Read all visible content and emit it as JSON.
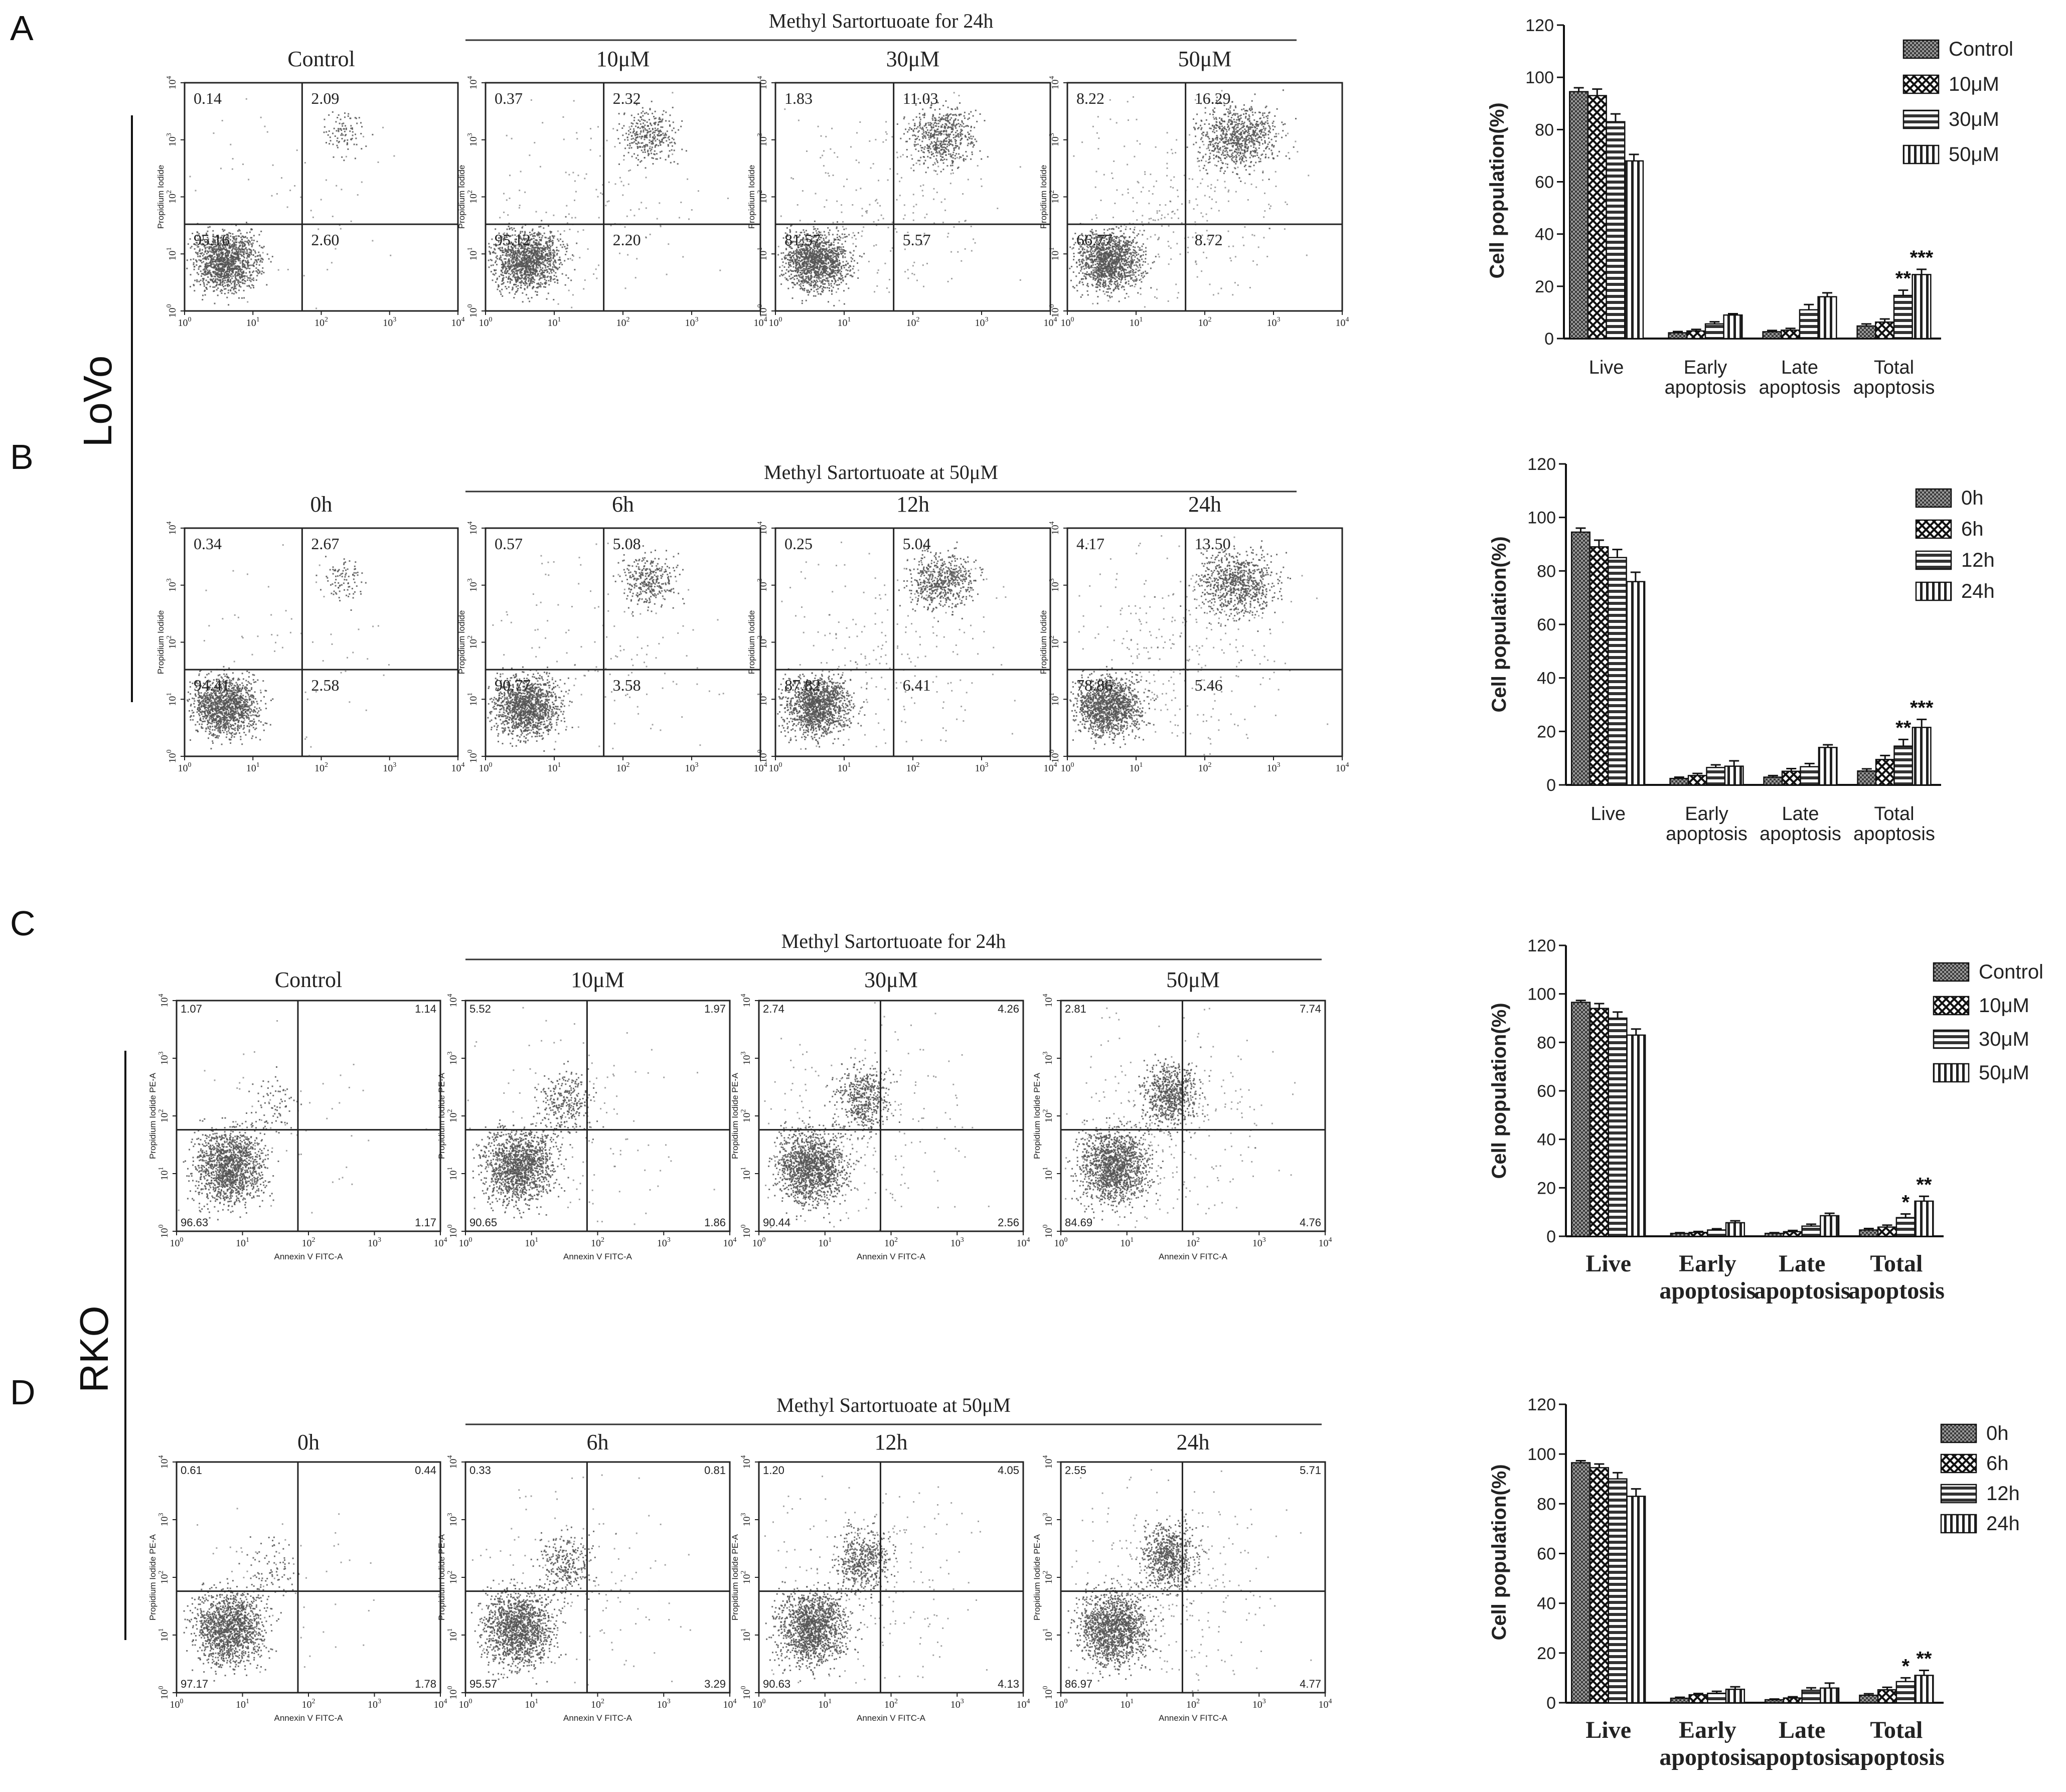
{
  "figure": {
    "panels": [
      "A",
      "B",
      "C",
      "D"
    ],
    "lines": {
      "lovo": "LoVo",
      "rko": "RKO"
    },
    "rows": [
      {
        "panel": "A",
        "style": "lovo",
        "group_title": "Methyl Sartortuoate for 24h",
        "y_axis_label": "Propidium Iodide",
        "x_axis_label": "",
        "plots": [
          {
            "title": "Control",
            "ul": "0.14",
            "ur": "2.09",
            "ll": "95.16",
            "lr": "2.60"
          },
          {
            "title": "10μM",
            "ul": "0.37",
            "ur": "2.32",
            "ll": "95.12",
            "lr": "2.20"
          },
          {
            "title": "30μM",
            "ul": "1.83",
            "ur": "11.03",
            "ll": "81.57",
            "lr": "5.57"
          },
          {
            "title": "50μM",
            "ul": "8.22",
            "ur": "16.29",
            "ll": "66.77",
            "lr": "8.72"
          }
        ]
      },
      {
        "panel": "B",
        "style": "lovo",
        "group_title": "Methyl Sartortuoate at 50μM",
        "y_axis_label": "Propidium Iodide",
        "x_axis_label": "",
        "plots": [
          {
            "title": "0h",
            "ul": "0.34",
            "ur": "2.67",
            "ll": "94.41",
            "lr": "2.58"
          },
          {
            "title": "6h",
            "ul": "0.57",
            "ur": "5.08",
            "ll": "90.77",
            "lr": "3.58"
          },
          {
            "title": "12h",
            "ul": "0.25",
            "ur": "5.04",
            "ll": "87.82",
            "lr": "6.41"
          },
          {
            "title": "24h",
            "ul": "4.17",
            "ur": "13.50",
            "ll": "78.86",
            "lr": "5.46"
          }
        ]
      },
      {
        "panel": "C",
        "style": "rko",
        "group_title": "Methyl Sartortuoate for 24h",
        "y_axis_label": "Propidium Iodide PE-A",
        "x_axis_label": "Annexin V FITC-A",
        "plots": [
          {
            "title": "Control",
            "ul": "1.07",
            "ur": "1.14",
            "ll": "96.63",
            "lr": "1.17"
          },
          {
            "title": "10μM",
            "ul": "5.52",
            "ur": "1.97",
            "ll": "90.65",
            "lr": "1.86"
          },
          {
            "title": "30μM",
            "ul": "2.74",
            "ur": "4.26",
            "ll": "90.44",
            "lr": "2.56"
          },
          {
            "title": "50μM",
            "ul": "2.81",
            "ur": "7.74",
            "ll": "84.69",
            "lr": "4.76"
          }
        ]
      },
      {
        "panel": "D",
        "style": "rko",
        "group_title": "Methyl Sartortuoate at 50μM",
        "y_axis_label": "Propidium Iodide PE-A",
        "x_axis_label": "Annexin V FITC-A",
        "plots": [
          {
            "title": "0h",
            "ul": "0.61",
            "ur": "0.44",
            "ll": "97.17",
            "lr": "1.78"
          },
          {
            "title": "6h",
            "ul": "0.33",
            "ur": "0.81",
            "ll": "95.57",
            "lr": "3.29"
          },
          {
            "title": "12h",
            "ul": "1.20",
            "ur": "4.05",
            "ll": "90.63",
            "lr": "4.13"
          },
          {
            "title": "24h",
            "ul": "2.55",
            "ur": "5.71",
            "ll": "86.97",
            "lr": "4.77"
          }
        ]
      }
    ]
  },
  "chart_data": [
    {
      "type": "bar",
      "panel": "A",
      "ylabel": "Cell population(%)",
      "ylim": [
        0,
        120
      ],
      "yticks": [
        0,
        20,
        40,
        60,
        80,
        100,
        120
      ],
      "categories": [
        "Live",
        "Early apoptosis",
        "Late apoptosis",
        "Total apoptosis"
      ],
      "series": [
        {
          "name": "Control",
          "values": [
            94.5,
            2.2,
            2.6,
            4.8
          ],
          "errors": [
            1.5,
            0.5,
            0.5,
            0.8
          ]
        },
        {
          "name": "10μM",
          "values": [
            93,
            2.9,
            3.2,
            6.3
          ],
          "errors": [
            2.5,
            0.6,
            0.7,
            1.2
          ]
        },
        {
          "name": "30μM",
          "values": [
            83,
            5.6,
            11,
            16.5
          ],
          "errors": [
            3,
            0.8,
            2,
            2
          ]
        },
        {
          "name": "50μM",
          "values": [
            68,
            9,
            16,
            24.5
          ],
          "errors": [
            2.5,
            0.5,
            1.5,
            2
          ]
        }
      ],
      "annotations": [
        {
          "category": "Total apoptosis",
          "series": "30μM",
          "text": "**"
        },
        {
          "category": "Total apoptosis",
          "series": "50μM",
          "text": "***"
        }
      ]
    },
    {
      "type": "bar",
      "panel": "B",
      "ylabel": "Cell population(%)",
      "ylim": [
        0,
        120
      ],
      "yticks": [
        0,
        20,
        40,
        60,
        80,
        100,
        120
      ],
      "categories": [
        "Live",
        "Early apoptosis",
        "Late apoptosis",
        "Total apoptosis"
      ],
      "series": [
        {
          "name": "0h",
          "values": [
            94.5,
            2.4,
            2.9,
            5.2
          ],
          "errors": [
            1.5,
            0.5,
            0.6,
            0.8
          ]
        },
        {
          "name": "6h",
          "values": [
            89,
            3.5,
            5.1,
            9.5
          ],
          "errors": [
            2.5,
            0.8,
            1,
            1.5
          ]
        },
        {
          "name": "12h",
          "values": [
            85,
            6.5,
            6.8,
            14.5
          ],
          "errors": [
            3,
            1,
            1.2,
            2.5
          ]
        },
        {
          "name": "24h",
          "values": [
            76,
            7,
            14,
            21.5
          ],
          "errors": [
            3.5,
            2,
            1,
            3
          ]
        }
      ],
      "annotations": [
        {
          "category": "Total apoptosis",
          "series": "12h",
          "text": "**"
        },
        {
          "category": "Total apoptosis",
          "series": "24h",
          "text": "***"
        }
      ]
    },
    {
      "type": "bar",
      "panel": "C",
      "ylabel": "Cell population(%)",
      "ylim": [
        0,
        120
      ],
      "yticks": [
        0,
        20,
        40,
        60,
        80,
        100,
        120
      ],
      "categories": [
        "Live",
        "Early apoptosis",
        "Late apoptosis",
        "Total apoptosis"
      ],
      "series": [
        {
          "name": "Control",
          "values": [
            96.5,
            1.2,
            1.2,
            2.6
          ],
          "errors": [
            0.8,
            0.3,
            0.3,
            0.6
          ]
        },
        {
          "name": "10μM",
          "values": [
            94,
            1.6,
            1.9,
            3.8
          ],
          "errors": [
            2,
            0.4,
            0.5,
            0.8
          ]
        },
        {
          "name": "30μM",
          "values": [
            90,
            2.6,
            4.2,
            7.7
          ],
          "errors": [
            2.5,
            0.5,
            0.8,
            1.5
          ]
        },
        {
          "name": "50μM",
          "values": [
            83,
            5.6,
            8.5,
            14.5
          ],
          "errors": [
            2.5,
            0.8,
            1,
            2
          ]
        }
      ],
      "annotations": [
        {
          "category": "Total apoptosis",
          "series": "30μM",
          "text": "*"
        },
        {
          "category": "Total apoptosis",
          "series": "50μM",
          "text": "**"
        }
      ]
    },
    {
      "type": "bar",
      "panel": "D",
      "ylabel": "Cell population(%)",
      "ylim": [
        0,
        120
      ],
      "yticks": [
        0,
        20,
        40,
        60,
        80,
        100,
        120
      ],
      "categories": [
        "Live",
        "Early apoptosis",
        "Late apoptosis",
        "Total apoptosis"
      ],
      "series": [
        {
          "name": "0h",
          "values": [
            96.5,
            1.8,
            1.2,
            3
          ],
          "errors": [
            0.8,
            0.4,
            0.3,
            0.6
          ]
        },
        {
          "name": "6h",
          "values": [
            94.5,
            3.2,
            1.9,
            5.2
          ],
          "errors": [
            1.5,
            0.5,
            0.5,
            1
          ]
        },
        {
          "name": "12h",
          "values": [
            90,
            3.8,
            5,
            8.5
          ],
          "errors": [
            2.5,
            0.8,
            1,
            1.5
          ]
        },
        {
          "name": "24h",
          "values": [
            83,
            5.4,
            5.9,
            11
          ],
          "errors": [
            3,
            1,
            2,
            2
          ]
        }
      ],
      "annotations": [
        {
          "category": "Total apoptosis",
          "series": "12h",
          "text": "*"
        },
        {
          "category": "Total apoptosis",
          "series": "24h",
          "text": "**"
        }
      ]
    }
  ]
}
